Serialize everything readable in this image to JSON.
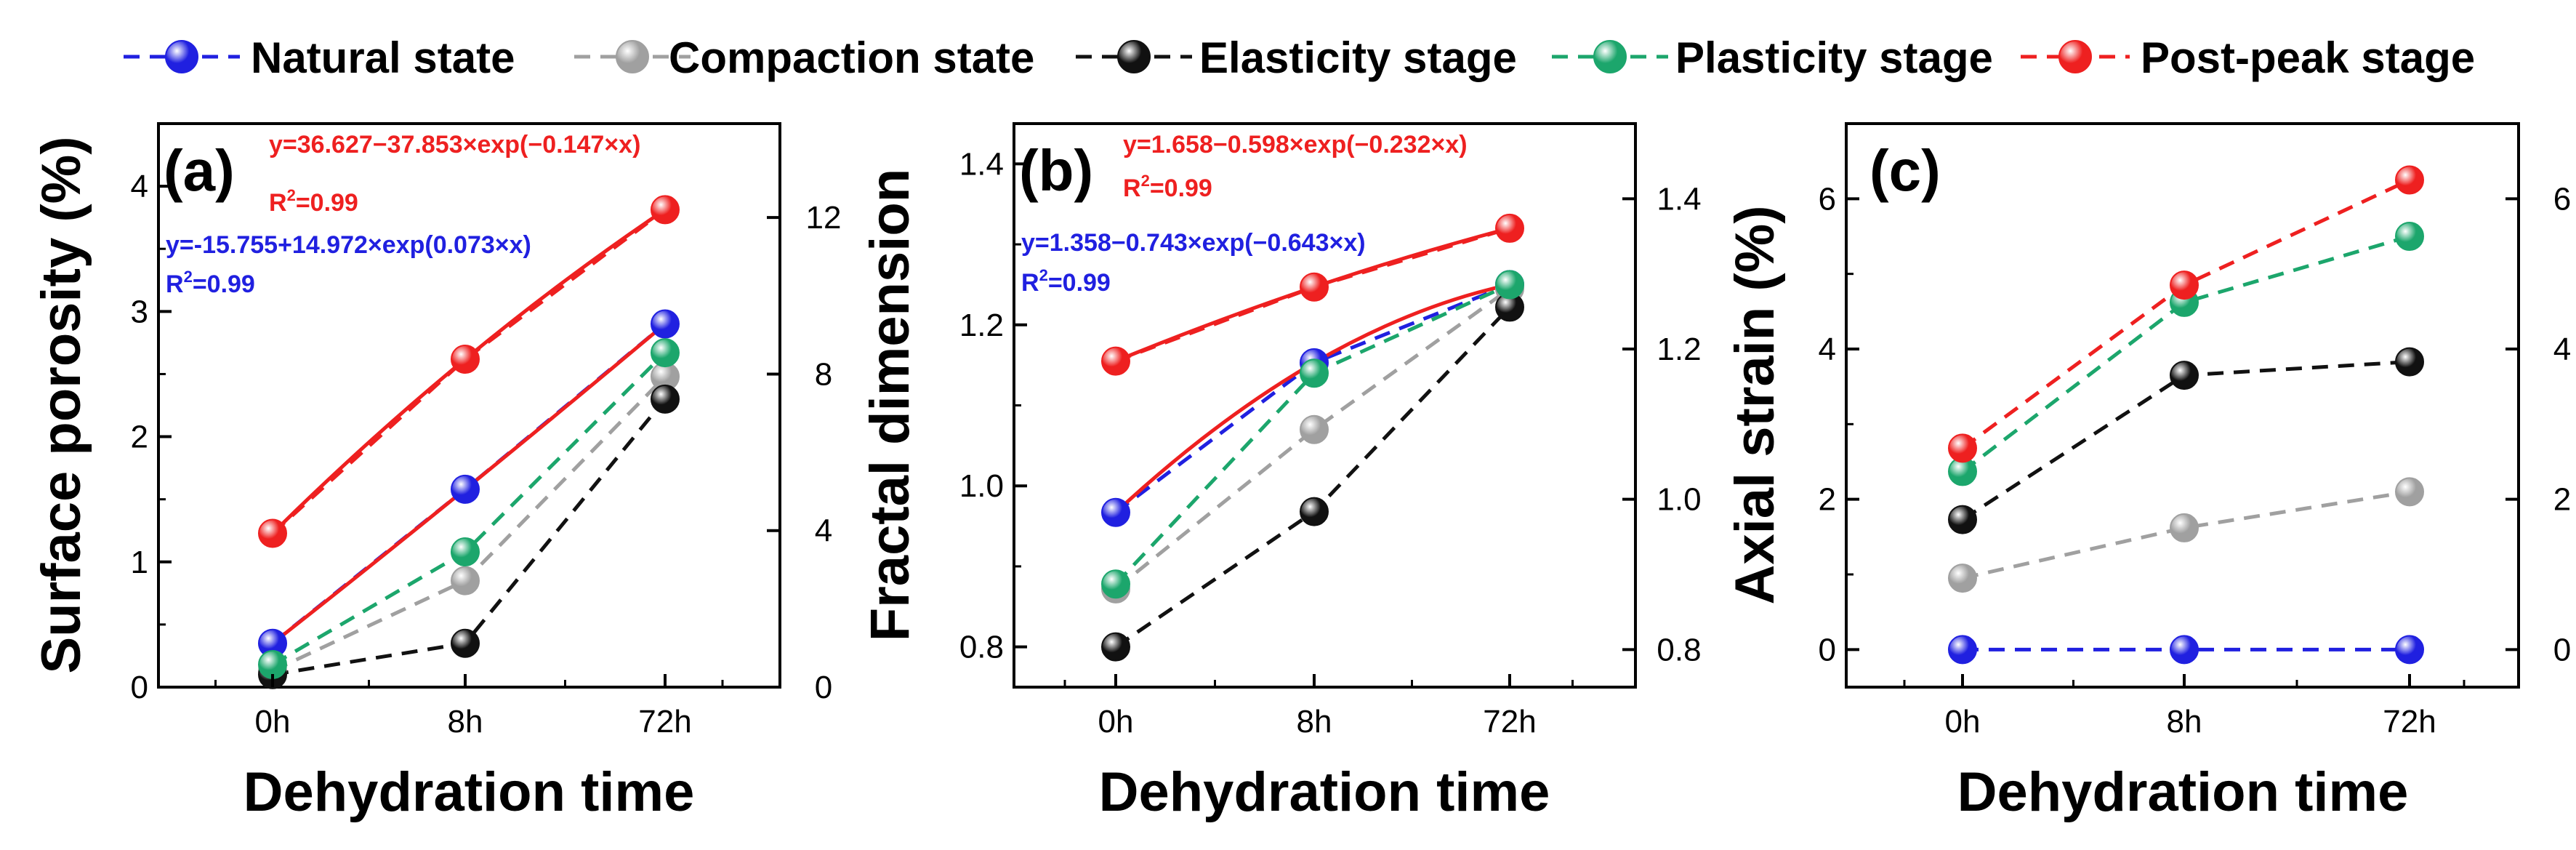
{
  "legend": {
    "entries": [
      {
        "label": "Natural state",
        "color": "#2020e0"
      },
      {
        "label": "Compaction state",
        "color": "#a0a0a0"
      },
      {
        "label": "Elasticity stage",
        "color": "#111111"
      },
      {
        "label": "Plasticity stage",
        "color": "#1ca66c"
      },
      {
        "label": "Post-peak stage",
        "color": "#ee2020"
      }
    ]
  },
  "chart_data": [
    {
      "type": "line",
      "panel_label": "(a)",
      "xlabel": "Dehydration time",
      "ylabel": "Surface porosity (%)",
      "categories": [
        "0h",
        "8h",
        "72h"
      ],
      "ylim": [
        0,
        4.5
      ],
      "yticks": [
        0,
        1,
        2,
        3,
        4
      ],
      "y2lim": [
        0,
        14.4
      ],
      "y2ticks": [
        0,
        4,
        8,
        12
      ],
      "series": [
        {
          "name": "Natural state",
          "color": "#2020e0",
          "axis": "left",
          "values": [
            0.35,
            1.58,
            2.9
          ]
        },
        {
          "name": "Compaction state",
          "color": "#a0a0a0",
          "axis": "left",
          "values": [
            0.13,
            0.85,
            2.48
          ]
        },
        {
          "name": "Elasticity stage",
          "color": "#111111",
          "axis": "left",
          "values": [
            0.1,
            0.35,
            2.3
          ]
        },
        {
          "name": "Plasticity stage",
          "color": "#1ca66c",
          "axis": "left",
          "values": [
            0.18,
            1.08,
            2.67
          ]
        },
        {
          "name": "Post-peak stage",
          "color": "#ee2020",
          "axis": "right",
          "values": [
            3.93,
            8.38,
            12.2
          ]
        }
      ],
      "fits": [
        {
          "color": "#ee2020",
          "axis": "right",
          "values": [
            3.93,
            8.38,
            12.2
          ]
        },
        {
          "color": "#ee2020",
          "axis": "left",
          "values": [
            0.35,
            1.58,
            2.9
          ]
        }
      ],
      "annotations": [
        {
          "equation": "y=36.627−37.853×exp(−0.147×x)",
          "r2_prefix": "R",
          "r2_sup": "2",
          "r2_suffix": "=0.99",
          "color": "#ee2020"
        },
        {
          "equation": "y=-15.755+14.972×exp(0.073×x)",
          "r2_prefix": "R",
          "r2_sup": "2",
          "r2_suffix": "=0.99",
          "color": "#2020e0"
        }
      ]
    },
    {
      "type": "line",
      "panel_label": "(b)",
      "xlabel": "Dehydration time",
      "ylabel": "Fractal dimension",
      "categories": [
        "0h",
        "8h",
        "72h"
      ],
      "ylim": [
        0.75,
        1.45
      ],
      "yticks": [
        0.8,
        1.0,
        1.2,
        1.4
      ],
      "ytick_labels": [
        "0.8",
        "1.0",
        "1.2",
        "1.4"
      ],
      "y2lim": [
        0.75,
        1.5
      ],
      "y2ticks": [
        0.8,
        1.0,
        1.2,
        1.4
      ],
      "y2tick_labels": [
        "0.8",
        "1.0",
        "1.2",
        "1.4"
      ],
      "series": [
        {
          "name": "Natural state",
          "color": "#2020e0",
          "axis": "left",
          "values": [
            0.967,
            1.153,
            1.25
          ]
        },
        {
          "name": "Compaction state",
          "color": "#a0a0a0",
          "axis": "left",
          "values": [
            0.872,
            1.07,
            1.245
          ]
        },
        {
          "name": "Elasticity stage",
          "color": "#111111",
          "axis": "left",
          "values": [
            0.8,
            0.968,
            1.222
          ]
        },
        {
          "name": "Plasticity stage",
          "color": "#1ca66c",
          "axis": "left",
          "values": [
            0.878,
            1.14,
            1.25
          ]
        },
        {
          "name": "Post-peak stage",
          "color": "#ee2020",
          "axis": "left",
          "values": [
            1.155,
            1.247,
            1.32
          ]
        }
      ],
      "fits": [
        {
          "color": "#ee2020",
          "axis": "left",
          "values": [
            1.155,
            1.247,
            1.32
          ]
        },
        {
          "color": "#ee2020",
          "axis": "left",
          "values": [
            0.967,
            1.153,
            1.25
          ]
        }
      ],
      "annotations": [
        {
          "equation": "y=1.658−0.598×exp(−0.232×x)",
          "r2_prefix": "R",
          "r2_sup": "2",
          "r2_suffix": "=0.99",
          "color": "#ee2020"
        },
        {
          "equation": "y=1.358−0.743×exp(−0.643×x)",
          "r2_prefix": "R",
          "r2_sup": "2",
          "r2_suffix": "=0.99",
          "color": "#2020e0"
        }
      ]
    },
    {
      "type": "line",
      "panel_label": "(c)",
      "xlabel": "Dehydration time",
      "ylabel": "Axial strain (%)",
      "categories": [
        "0h",
        "8h",
        "72h"
      ],
      "ylim": [
        -0.5,
        7.0
      ],
      "yticks": [
        0,
        2,
        4,
        6
      ],
      "y2lim": [
        -0.5,
        7.0
      ],
      "y2ticks": [
        0,
        2,
        4,
        6
      ],
      "series": [
        {
          "name": "Natural state",
          "color": "#2020e0",
          "axis": "left",
          "values": [
            0,
            0,
            0
          ]
        },
        {
          "name": "Compaction state",
          "color": "#a0a0a0",
          "axis": "left",
          "values": [
            0.95,
            1.62,
            2.1
          ]
        },
        {
          "name": "Elasticity stage",
          "color": "#111111",
          "axis": "left",
          "values": [
            1.73,
            3.65,
            3.83
          ]
        },
        {
          "name": "Plasticity stage",
          "color": "#1ca66c",
          "axis": "left",
          "values": [
            2.37,
            4.62,
            5.5
          ]
        },
        {
          "name": "Post-peak stage",
          "color": "#ee2020",
          "axis": "left",
          "values": [
            2.68,
            4.85,
            6.25
          ]
        }
      ],
      "fits": [],
      "annotations": []
    }
  ]
}
